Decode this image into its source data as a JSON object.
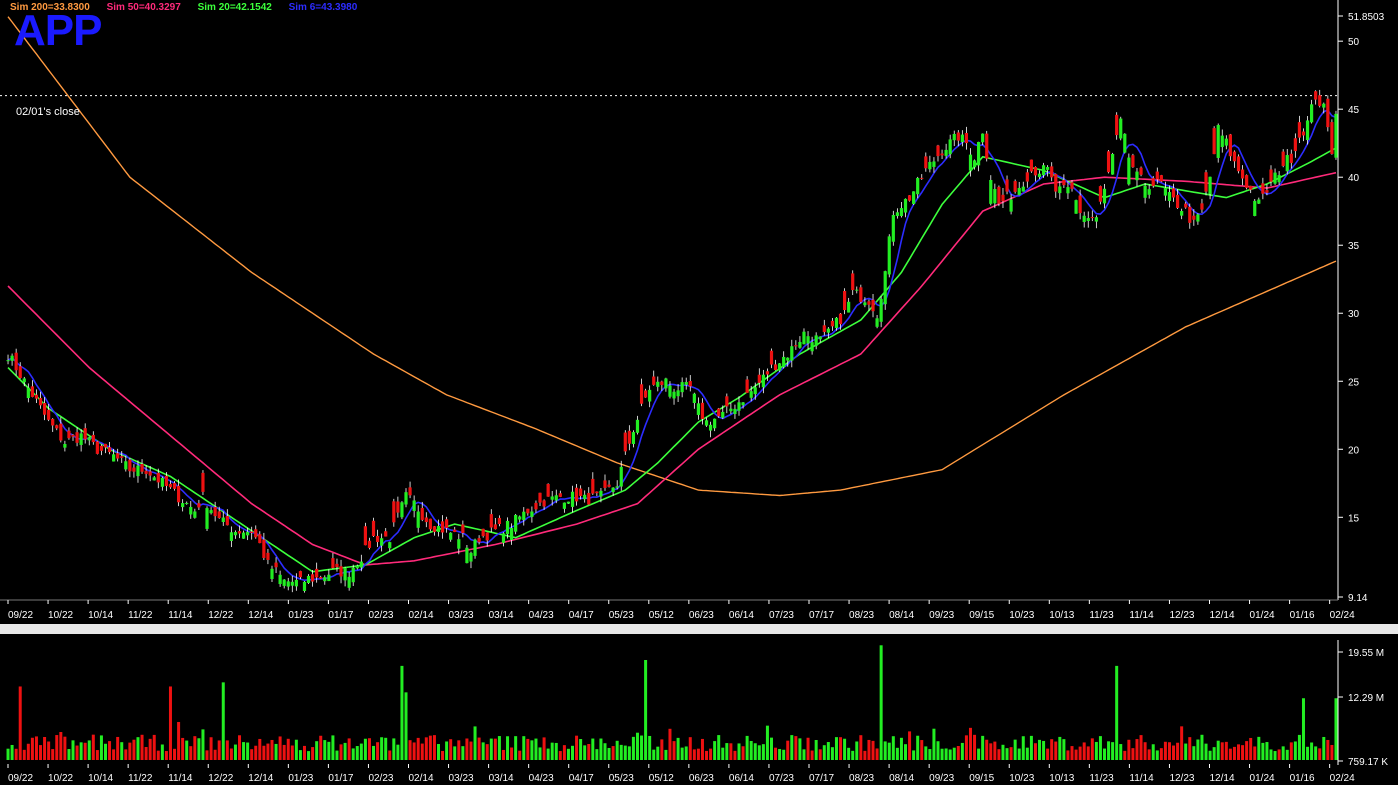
{
  "legend": [
    {
      "label": "Sim 200=33.8300",
      "color": "#ff9a40"
    },
    {
      "label": "Sim 50=40.3297",
      "color": "#ff2a7a"
    },
    {
      "label": "Sim 20=42.1542",
      "color": "#3cff3c"
    },
    {
      "label": "Sim 6=43.3980",
      "color": "#2c2cff"
    }
  ],
  "ticker": "APP",
  "close_label": "02/01's close",
  "chart_data": {
    "type": "candlestick",
    "price_axis": {
      "min": 9.14,
      "max": 51.8503,
      "ticks": [
        "51.8503",
        "50",
        "45",
        "40",
        "35",
        "30",
        "25",
        "20",
        "15",
        "9.14"
      ]
    },
    "volume_axis": {
      "ticks": [
        "19.55 M",
        "12.29 M",
        "759.17 K"
      ],
      "max": 19.55
    },
    "reference_close": 46,
    "date_labels": [
      "09/22",
      "10/22",
      "10/14",
      "11/22",
      "11/14",
      "12/22",
      "12/14",
      "01/23",
      "01/17",
      "02/23",
      "02/14",
      "03/23",
      "03/14",
      "04/23",
      "04/17",
      "05/23",
      "05/12",
      "06/23",
      "06/14",
      "07/23",
      "07/17",
      "08/23",
      "08/14",
      "09/23",
      "09/15",
      "10/23",
      "10/13",
      "11/23",
      "11/14",
      "12/23",
      "12/14",
      "01/24",
      "01/16",
      "02/24"
    ],
    "last_values": {
      "sim200": 33.83,
      "sim50": 40.3297,
      "sim20": 42.1542,
      "sim6": 43.398
    },
    "price_anchors": [
      [
        0,
        27
      ],
      [
        6,
        24
      ],
      [
        10,
        22
      ],
      [
        14,
        20.5
      ],
      [
        18,
        21
      ],
      [
        22,
        20
      ],
      [
        26,
        19.5
      ],
      [
        30,
        18.5
      ],
      [
        34,
        18.5
      ],
      [
        38,
        17.5
      ],
      [
        42,
        16.5
      ],
      [
        46,
        15.5
      ],
      [
        48,
        16.5
      ],
      [
        52,
        14.8
      ],
      [
        56,
        14
      ],
      [
        60,
        14
      ],
      [
        62,
        13
      ],
      [
        64,
        11.5
      ],
      [
        66,
        11
      ],
      [
        68,
        10.3
      ],
      [
        72,
        10.2
      ],
      [
        74,
        10.5
      ],
      [
        76,
        10.5
      ],
      [
        80,
        11
      ],
      [
        84,
        11
      ],
      [
        88,
        12.5
      ],
      [
        90,
        13.5
      ],
      [
        94,
        13.5
      ],
      [
        96,
        15
      ],
      [
        98,
        16.5
      ],
      [
        100,
        16
      ],
      [
        104,
        14.5
      ],
      [
        108,
        14
      ],
      [
        112,
        13.5
      ],
      [
        114,
        12.5
      ],
      [
        116,
        13.5
      ],
      [
        120,
        14
      ],
      [
        124,
        14.5
      ],
      [
        128,
        15.5
      ],
      [
        132,
        16.2
      ],
      [
        136,
        16.5
      ],
      [
        140,
        16.5
      ],
      [
        142,
        16.3
      ],
      [
        146,
        16.5
      ],
      [
        150,
        17.5
      ],
      [
        154,
        21.5
      ],
      [
        156,
        23
      ],
      [
        158,
        24.5
      ],
      [
        162,
        25
      ],
      [
        164,
        24.5
      ],
      [
        168,
        24.5
      ],
      [
        170,
        23
      ],
      [
        172,
        22
      ],
      [
        176,
        22.5
      ],
      [
        180,
        23.5
      ],
      [
        184,
        24.5
      ],
      [
        188,
        26
      ],
      [
        192,
        27
      ],
      [
        196,
        28.5
      ],
      [
        200,
        28
      ],
      [
        202,
        28.5
      ],
      [
        206,
        30
      ],
      [
        208,
        31.5
      ],
      [
        212,
        31
      ],
      [
        214,
        30
      ],
      [
        216,
        33
      ],
      [
        218,
        37.5
      ],
      [
        222,
        38.5
      ],
      [
        226,
        40.5
      ],
      [
        230,
        42
      ],
      [
        234,
        43
      ],
      [
        236,
        42.5
      ],
      [
        238,
        41.5
      ],
      [
        240,
        43.5
      ],
      [
        242,
        40
      ],
      [
        244,
        38
      ],
      [
        248,
        39
      ],
      [
        252,
        40.5
      ],
      [
        256,
        40.5
      ],
      [
        258,
        39
      ],
      [
        262,
        39
      ],
      [
        264,
        37.5
      ],
      [
        266,
        37
      ],
      [
        268,
        37
      ],
      [
        270,
        39
      ],
      [
        272,
        41.5
      ],
      [
        274,
        44
      ],
      [
        276,
        41.5
      ],
      [
        278,
        40
      ],
      [
        280,
        39.5
      ],
      [
        282,
        39.5
      ],
      [
        284,
        39.5
      ],
      [
        286,
        38.5
      ],
      [
        290,
        37.5
      ],
      [
        292,
        36.5
      ],
      [
        294,
        37.5
      ],
      [
        296,
        40
      ],
      [
        298,
        43.5
      ],
      [
        300,
        42.5
      ],
      [
        302,
        41
      ],
      [
        306,
        39
      ],
      [
        308,
        38
      ],
      [
        310,
        39
      ],
      [
        312,
        40
      ],
      [
        314,
        41
      ],
      [
        316,
        41.5
      ],
      [
        318,
        43
      ],
      [
        320,
        44
      ],
      [
        322,
        46
      ],
      [
        324,
        45
      ],
      [
        326,
        42
      ],
      [
        327,
        45
      ]
    ],
    "ma200_anchors": [
      [
        0,
        51.8
      ],
      [
        30,
        40
      ],
      [
        60,
        33
      ],
      [
        90,
        27
      ],
      [
        108,
        24
      ],
      [
        130,
        21.5
      ],
      [
        150,
        19
      ],
      [
        170,
        17
      ],
      [
        190,
        16.6
      ],
      [
        205,
        17
      ],
      [
        230,
        18.5
      ],
      [
        260,
        24
      ],
      [
        290,
        29
      ],
      [
        327,
        33.83
      ]
    ],
    "ma50_anchors": [
      [
        0,
        32
      ],
      [
        20,
        26
      ],
      [
        40,
        21
      ],
      [
        60,
        16
      ],
      [
        75,
        13
      ],
      [
        88,
        11.5
      ],
      [
        100,
        11.8
      ],
      [
        120,
        13
      ],
      [
        140,
        14.5
      ],
      [
        155,
        16
      ],
      [
        170,
        20
      ],
      [
        190,
        24
      ],
      [
        210,
        27
      ],
      [
        225,
        32
      ],
      [
        240,
        37.5
      ],
      [
        255,
        39.5
      ],
      [
        270,
        40
      ],
      [
        290,
        39.7
      ],
      [
        310,
        39.2
      ],
      [
        327,
        40.33
      ]
    ],
    "ma20_anchors": [
      [
        0,
        26
      ],
      [
        10,
        23
      ],
      [
        25,
        20
      ],
      [
        40,
        18
      ],
      [
        55,
        15
      ],
      [
        65,
        13
      ],
      [
        75,
        11
      ],
      [
        88,
        11.5
      ],
      [
        100,
        13.5
      ],
      [
        110,
        14.5
      ],
      [
        125,
        13.5
      ],
      [
        140,
        15.5
      ],
      [
        152,
        17
      ],
      [
        160,
        19
      ],
      [
        170,
        22
      ],
      [
        180,
        23.8
      ],
      [
        195,
        27
      ],
      [
        210,
        29.5
      ],
      [
        220,
        33
      ],
      [
        230,
        38
      ],
      [
        240,
        41.5
      ],
      [
        255,
        40.5
      ],
      [
        270,
        38.5
      ],
      [
        280,
        39.5
      ],
      [
        290,
        39
      ],
      [
        300,
        38.5
      ],
      [
        310,
        39.5
      ],
      [
        320,
        41
      ],
      [
        327,
        42.15
      ]
    ],
    "volume_spikes": [
      [
        3,
        12.5
      ],
      [
        40,
        12.5
      ],
      [
        53,
        13.2
      ],
      [
        97,
        16
      ],
      [
        98,
        11.5
      ],
      [
        157,
        17
      ],
      [
        215,
        19.5
      ],
      [
        273,
        16
      ],
      [
        319,
        10.5
      ],
      [
        327,
        10.5
      ]
    ]
  }
}
